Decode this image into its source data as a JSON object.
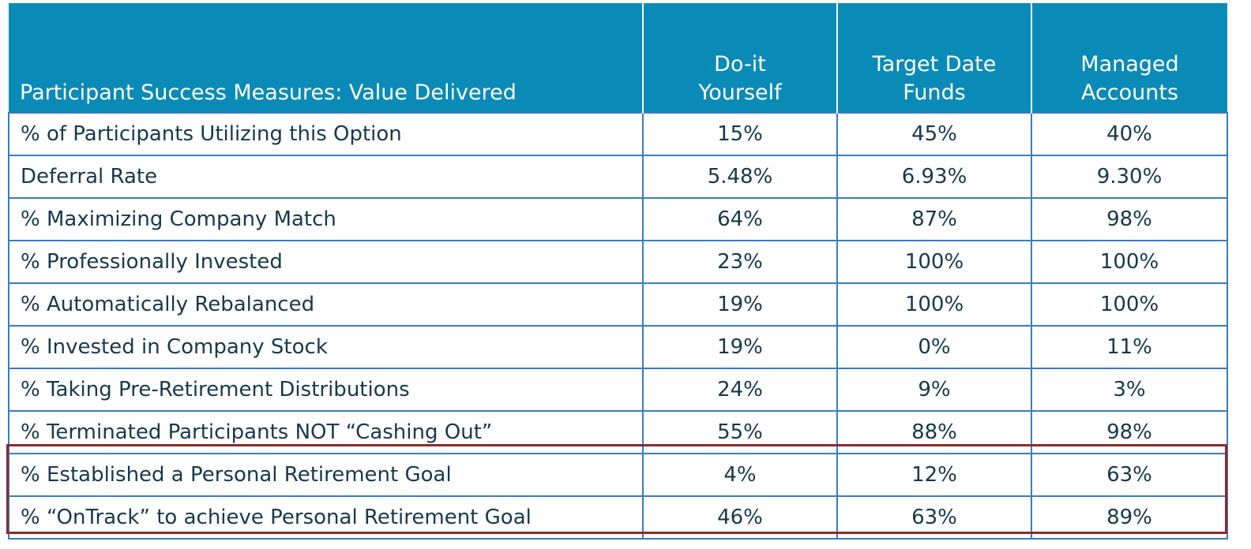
{
  "table": {
    "header": [
      "Participant Success Measures: Value Delivered",
      "Do-it\nYourself",
      "Target Date\nFunds",
      "Managed\nAccounts"
    ],
    "rows": [
      [
        "% of Participants Utilizing this Option",
        "15%",
        "45%",
        "40%"
      ],
      [
        "Deferral Rate",
        "5.48%",
        "6.93%",
        "9.30%"
      ],
      [
        "% Maximizing Company Match",
        "64%",
        "87%",
        "98%"
      ],
      [
        "% Professionally Invested",
        "23%",
        "100%",
        "100%"
      ],
      [
        "% Automatically Rebalanced",
        "19%",
        "100%",
        "100%"
      ],
      [
        "% Invested in Company Stock",
        "19%",
        "0%",
        "11%"
      ],
      [
        "% Taking Pre-Retirement Distributions",
        "24%",
        "9%",
        "3%"
      ],
      [
        "% Terminated Participants NOT “Cashing Out”",
        "55%",
        "88%",
        "98%"
      ],
      [
        "% Established a Personal Retirement Goal",
        "4%",
        "12%",
        "63%"
      ],
      [
        "% “OnTrack” to achieve Personal Retirement Goal",
        "46%",
        "63%",
        "89%"
      ]
    ]
  }
}
